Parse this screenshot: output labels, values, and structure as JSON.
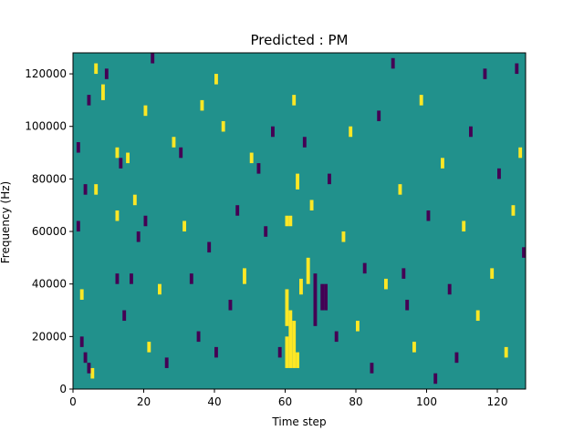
{
  "chart_data": {
    "type": "heatmap",
    "title": "Predicted : PM",
    "xlabel": "Time step",
    "ylabel": "Frequency (Hz)",
    "xlim": [
      0,
      128
    ],
    "ylim": [
      0,
      128000
    ],
    "xticks": [
      0,
      20,
      40,
      60,
      80,
      100,
      120
    ],
    "yticks": [
      0,
      20000,
      40000,
      60000,
      80000,
      100000,
      120000
    ],
    "x_tick_labels": [
      "0",
      "20",
      "40",
      "60",
      "80",
      "100",
      "120"
    ],
    "y_tick_labels": [
      "0",
      "20000",
      "40000",
      "60000",
      "80000",
      "100000",
      "120000"
    ],
    "colormap": "viridis",
    "background_value": 0,
    "colors": {
      "background": "#21918c",
      "high": "#fde725",
      "low": "#440154"
    },
    "y_cell_height": 2000,
    "cells": [
      {
        "t": 60,
        "f": 24000,
        "h": 14000,
        "value": 1
      },
      {
        "t": 60,
        "f": 8000,
        "h": 12000,
        "value": 1
      },
      {
        "t": 61,
        "f": 8000,
        "h": 22000,
        "value": 1
      },
      {
        "t": 62,
        "f": 8000,
        "h": 18000,
        "value": 1
      },
      {
        "t": 63,
        "f": 8000,
        "h": 6000,
        "value": 1
      },
      {
        "t": 60,
        "f": 62000,
        "h": 4000,
        "value": 1
      },
      {
        "t": 61,
        "f": 62000,
        "h": 4000,
        "value": 1
      },
      {
        "t": 70,
        "f": 30000,
        "h": 10000,
        "value": -1
      },
      {
        "t": 71,
        "f": 30000,
        "h": 10000,
        "value": -1
      },
      {
        "t": 64,
        "f": 36000,
        "h": 6000,
        "value": 1
      },
      {
        "t": 66,
        "f": 40000,
        "h": 10000,
        "value": 1
      },
      {
        "t": 68,
        "f": 24000,
        "h": 20000,
        "value": -1
      },
      {
        "t": 93,
        "f": 42000,
        "h": 4000,
        "value": -1
      },
      {
        "t": 127,
        "f": 50000,
        "h": 4000,
        "value": -1
      },
      {
        "t": 40,
        "f": 12000,
        "h": 4000,
        "value": -1
      },
      {
        "t": 1,
        "f": 90000,
        "h": 4000,
        "value": -1
      },
      {
        "t": 4,
        "f": 108000,
        "h": 4000,
        "value": -1
      },
      {
        "t": 5,
        "f": 4000,
        "h": 4000,
        "value": 1
      },
      {
        "t": 2,
        "f": 34000,
        "h": 4000,
        "value": 1
      },
      {
        "t": 2,
        "f": 16000,
        "h": 4000,
        "value": -1
      },
      {
        "t": 3,
        "f": 10000,
        "h": 4000,
        "value": -1
      },
      {
        "t": 4,
        "f": 6000,
        "h": 4000,
        "value": -1
      },
      {
        "t": 1,
        "f": 60000,
        "h": 4000,
        "value": -1
      },
      {
        "t": 3,
        "f": 74000,
        "h": 4000,
        "value": -1
      },
      {
        "t": 6,
        "f": 74000,
        "h": 4000,
        "value": 1
      },
      {
        "t": 6,
        "f": 120000,
        "h": 4000,
        "value": 1
      },
      {
        "t": 8,
        "f": 110000,
        "h": 6000,
        "value": 1
      },
      {
        "t": 9,
        "f": 118000,
        "h": 4000,
        "value": -1
      },
      {
        "t": 12,
        "f": 88000,
        "h": 4000,
        "value": 1
      },
      {
        "t": 12,
        "f": 40000,
        "h": 4000,
        "value": -1
      },
      {
        "t": 12,
        "f": 64000,
        "h": 4000,
        "value": 1
      },
      {
        "t": 13,
        "f": 84000,
        "h": 4000,
        "value": -1
      },
      {
        "t": 14,
        "f": 26000,
        "h": 4000,
        "value": -1
      },
      {
        "t": 15,
        "f": 86000,
        "h": 4000,
        "value": 1
      },
      {
        "t": 16,
        "f": 40000,
        "h": 4000,
        "value": -1
      },
      {
        "t": 17,
        "f": 70000,
        "h": 4000,
        "value": 1
      },
      {
        "t": 18,
        "f": 56000,
        "h": 4000,
        "value": -1
      },
      {
        "t": 20,
        "f": 62000,
        "h": 4000,
        "value": -1
      },
      {
        "t": 20,
        "f": 104000,
        "h": 4000,
        "value": 1
      },
      {
        "t": 21,
        "f": 14000,
        "h": 4000,
        "value": 1
      },
      {
        "t": 22,
        "f": 124000,
        "h": 4000,
        "value": -1
      },
      {
        "t": 24,
        "f": 36000,
        "h": 4000,
        "value": 1
      },
      {
        "t": 26,
        "f": 8000,
        "h": 4000,
        "value": -1
      },
      {
        "t": 28,
        "f": 92000,
        "h": 4000,
        "value": 1
      },
      {
        "t": 30,
        "f": 88000,
        "h": 4000,
        "value": -1
      },
      {
        "t": 31,
        "f": 60000,
        "h": 4000,
        "value": 1
      },
      {
        "t": 33,
        "f": 40000,
        "h": 4000,
        "value": -1
      },
      {
        "t": 35,
        "f": 18000,
        "h": 4000,
        "value": -1
      },
      {
        "t": 36,
        "f": 106000,
        "h": 4000,
        "value": 1
      },
      {
        "t": 38,
        "f": 52000,
        "h": 4000,
        "value": -1
      },
      {
        "t": 40,
        "f": 116000,
        "h": 4000,
        "value": 1
      },
      {
        "t": 42,
        "f": 98000,
        "h": 4000,
        "value": 1
      },
      {
        "t": 44,
        "f": 30000,
        "h": 4000,
        "value": -1
      },
      {
        "t": 46,
        "f": 66000,
        "h": 4000,
        "value": -1
      },
      {
        "t": 48,
        "f": 40000,
        "h": 6000,
        "value": 1
      },
      {
        "t": 50,
        "f": 86000,
        "h": 4000,
        "value": 1
      },
      {
        "t": 52,
        "f": 82000,
        "h": 4000,
        "value": -1
      },
      {
        "t": 54,
        "f": 58000,
        "h": 4000,
        "value": -1
      },
      {
        "t": 56,
        "f": 96000,
        "h": 4000,
        "value": -1
      },
      {
        "t": 58,
        "f": 12000,
        "h": 4000,
        "value": -1
      },
      {
        "t": 62,
        "f": 108000,
        "h": 4000,
        "value": 1
      },
      {
        "t": 63,
        "f": 76000,
        "h": 6000,
        "value": 1
      },
      {
        "t": 65,
        "f": 92000,
        "h": 4000,
        "value": -1
      },
      {
        "t": 67,
        "f": 68000,
        "h": 4000,
        "value": 1
      },
      {
        "t": 72,
        "f": 78000,
        "h": 4000,
        "value": -1
      },
      {
        "t": 74,
        "f": 18000,
        "h": 4000,
        "value": -1
      },
      {
        "t": 76,
        "f": 56000,
        "h": 4000,
        "value": 1
      },
      {
        "t": 78,
        "f": 96000,
        "h": 4000,
        "value": 1
      },
      {
        "t": 80,
        "f": 22000,
        "h": 4000,
        "value": 1
      },
      {
        "t": 82,
        "f": 44000,
        "h": 4000,
        "value": -1
      },
      {
        "t": 84,
        "f": 6000,
        "h": 4000,
        "value": -1
      },
      {
        "t": 86,
        "f": 102000,
        "h": 4000,
        "value": -1
      },
      {
        "t": 88,
        "f": 38000,
        "h": 4000,
        "value": 1
      },
      {
        "t": 90,
        "f": 122000,
        "h": 4000,
        "value": -1
      },
      {
        "t": 92,
        "f": 74000,
        "h": 4000,
        "value": 1
      },
      {
        "t": 94,
        "f": 30000,
        "h": 4000,
        "value": -1
      },
      {
        "t": 96,
        "f": 14000,
        "h": 4000,
        "value": 1
      },
      {
        "t": 98,
        "f": 108000,
        "h": 4000,
        "value": 1
      },
      {
        "t": 100,
        "f": 64000,
        "h": 4000,
        "value": -1
      },
      {
        "t": 102,
        "f": 2000,
        "h": 4000,
        "value": -1
      },
      {
        "t": 104,
        "f": 84000,
        "h": 4000,
        "value": 1
      },
      {
        "t": 106,
        "f": 36000,
        "h": 4000,
        "value": -1
      },
      {
        "t": 108,
        "f": 10000,
        "h": 4000,
        "value": -1
      },
      {
        "t": 110,
        "f": 60000,
        "h": 4000,
        "value": 1
      },
      {
        "t": 112,
        "f": 96000,
        "h": 4000,
        "value": -1
      },
      {
        "t": 114,
        "f": 26000,
        "h": 4000,
        "value": 1
      },
      {
        "t": 116,
        "f": 118000,
        "h": 4000,
        "value": -1
      },
      {
        "t": 118,
        "f": 42000,
        "h": 4000,
        "value": 1
      },
      {
        "t": 120,
        "f": 80000,
        "h": 4000,
        "value": -1
      },
      {
        "t": 122,
        "f": 12000,
        "h": 4000,
        "value": 1
      },
      {
        "t": 124,
        "f": 66000,
        "h": 4000,
        "value": 1
      },
      {
        "t": 125,
        "f": 120000,
        "h": 4000,
        "value": -1
      },
      {
        "t": 126,
        "f": 88000,
        "h": 4000,
        "value": 1
      }
    ]
  }
}
